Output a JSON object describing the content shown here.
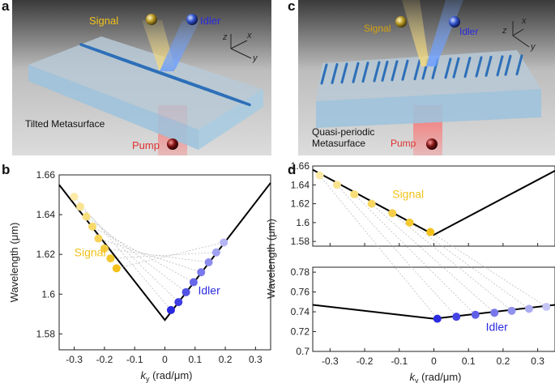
{
  "panels": {
    "a": {
      "letter": "a",
      "signal_label": "Signal",
      "idler_label": "Idler",
      "caption": "Tilted Metasurface",
      "pump_label": "Pump",
      "axes": {
        "z": "z",
        "x": "x",
        "y": "y"
      }
    },
    "c": {
      "letter": "c",
      "signal_label": "Signal",
      "idler_label": "Idler",
      "caption_line1": "Quasi-periodic",
      "caption_line2": "Metasurface",
      "pump_label": "Pump",
      "axes": {
        "z": "z",
        "x": "x",
        "y": "y"
      }
    },
    "b": {
      "letter": "b"
    },
    "d": {
      "letter": "d"
    }
  },
  "colors": {
    "signal": "#f2c21b",
    "idler": "#2a2ae0",
    "curve": "#000000",
    "pump": "#e03030"
  },
  "chart_data": [
    {
      "id": "b",
      "type": "line",
      "xlabel": "k_y (rad/μm)",
      "xlabel_main": "k",
      "xlabel_sub": "y",
      "xlabel_unit": " (rad/μm)",
      "ylabel": "Wavelength (μm)",
      "xlim": [
        -0.35,
        0.35
      ],
      "ylim": [
        1.572,
        1.66
      ],
      "xticks": [
        -0.3,
        -0.2,
        -0.1,
        0,
        0.1,
        0.2,
        0.3
      ],
      "xtick_labels": [
        "-0.3",
        "-0.2",
        "-0.1",
        "0",
        "0.1",
        "0.2",
        "0.3"
      ],
      "yticks": [
        1.58,
        1.6,
        1.62,
        1.64,
        1.66
      ],
      "ytick_labels": [
        "1.58",
        "1.6",
        "1.62",
        "1.64",
        "1.66"
      ],
      "series": [
        {
          "type": "line",
          "x": [
            -0.35,
            0.0,
            0.35
          ],
          "y": [
            1.655,
            1.587,
            1.656
          ]
        },
        {
          "name": "Signal",
          "type": "scatter",
          "x": [
            -0.3,
            -0.28,
            -0.26,
            -0.24,
            -0.22,
            -0.2,
            -0.18,
            -0.16
          ],
          "y": [
            1.649,
            1.644,
            1.639,
            1.634,
            1.628,
            1.623,
            1.618,
            1.613
          ]
        },
        {
          "name": "Idler",
          "type": "scatter",
          "x": [
            0.02,
            0.045,
            0.07,
            0.095,
            0.12,
            0.145,
            0.17,
            0.195
          ],
          "y": [
            1.592,
            1.596,
            1.601,
            1.606,
            1.611,
            1.616,
            1.621,
            1.626
          ]
        }
      ],
      "annotations": {
        "signal": "Signal",
        "idler": "Idler"
      }
    },
    {
      "id": "d",
      "type": "line",
      "xlabel": "k_y (rad/μm)",
      "xlabel_main": "k",
      "xlabel_sub": "y",
      "xlabel_unit": " (rad/μm)",
      "ylabel": "Wavelength (μm)",
      "xlim": [
        -0.35,
        0.35
      ],
      "xticks": [
        -0.3,
        -0.2,
        -0.1,
        0,
        0.1,
        0.2,
        0.3
      ],
      "xtick_labels": [
        "-0.3",
        "-0.2",
        "-0.1",
        "0",
        "0.1",
        "0.2",
        "0.3"
      ],
      "top": {
        "ylim": [
          1.575,
          1.66
        ],
        "yticks": [
          1.58,
          1.6,
          1.62,
          1.64,
          1.66
        ],
        "ytick_labels": [
          "1.58",
          "1.6",
          "1.62",
          "1.64",
          "1.66"
        ],
        "series": [
          {
            "type": "line",
            "x": [
              -0.35,
              0.0,
              0.35
            ],
            "y": [
              1.656,
              1.587,
              1.655
            ]
          },
          {
            "name": "Signal",
            "type": "scatter",
            "x": [
              -0.33,
              -0.28,
              -0.23,
              -0.18,
              -0.12,
              -0.07,
              -0.01
            ],
            "y": [
              1.65,
              1.64,
              1.63,
              1.62,
              1.61,
              1.6,
              1.59
            ]
          }
        ],
        "annotation": "Signal"
      },
      "bottom": {
        "ylim": [
          0.7,
          0.785
        ],
        "yticks": [
          0.7,
          0.72,
          0.74,
          0.76,
          0.78
        ],
        "ytick_labels": [
          "0.7",
          "0.72",
          "0.74",
          "0.76",
          "0.78"
        ],
        "series": [
          {
            "type": "line",
            "x": [
              -0.35,
              0.0,
              0.35
            ],
            "y": [
              0.747,
              0.733,
              0.747
            ]
          },
          {
            "name": "Idler",
            "type": "scatter",
            "x": [
              0.01,
              0.065,
              0.12,
              0.175,
              0.225,
              0.275,
              0.325
            ],
            "y": [
              0.733,
              0.735,
              0.737,
              0.739,
              0.741,
              0.743,
              0.745
            ]
          }
        ],
        "annotation": "Idler"
      }
    }
  ]
}
